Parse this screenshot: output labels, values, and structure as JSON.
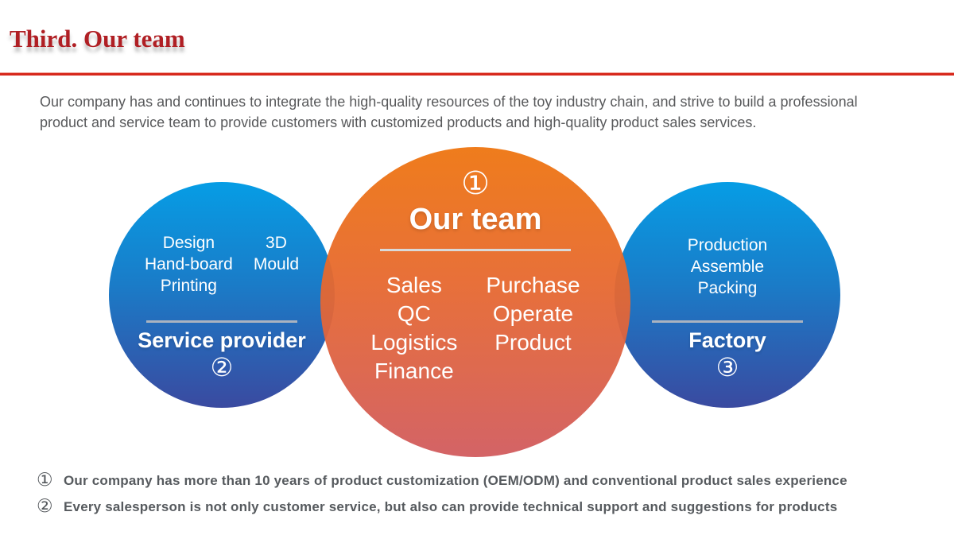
{
  "header": {
    "title": "Third. Our team"
  },
  "intro": {
    "text": "Our company has and continues to integrate the high-quality resources of the toy industry chain, and strive to build a professional product and service team to provide customers with customized products and high-quality product sales services."
  },
  "circles": {
    "our_team": {
      "number": "①",
      "label": "Our team",
      "col1": [
        "Sales",
        "QC",
        "Logistics",
        "Finance"
      ],
      "col2": [
        "Purchase",
        "Operate",
        "Product"
      ]
    },
    "service_provider": {
      "number": "②",
      "label": "Service provider",
      "col1": [
        "Design",
        "Hand-board",
        "Printing"
      ],
      "col2": [
        "3D",
        "Mould"
      ]
    },
    "factory": {
      "number": "③",
      "label": "Factory",
      "items": [
        "Production",
        "Assemble",
        "Packing"
      ]
    }
  },
  "notes": [
    {
      "number": "①",
      "text": "Our company has more than 10 years of product customization (OEM/ODM) and conventional product sales experience"
    },
    {
      "number": "②",
      "text": "Every salesperson is not only customer service, but also can provide technical support and suggestions for products"
    }
  ],
  "colors": {
    "title_red": "#b01f24",
    "rule_red": "#d7281c",
    "body_gray": "#58595b",
    "note_gray": "#565a5e",
    "blue_top": "#069de5",
    "blue_bottom": "#3a4aa0",
    "orange_top": "#ee7510",
    "orange_bottom": "#d15b5e",
    "divider_light": "#aab3c0",
    "divider_orange": "#d9d9d9",
    "circle_text": "#ffffff"
  }
}
